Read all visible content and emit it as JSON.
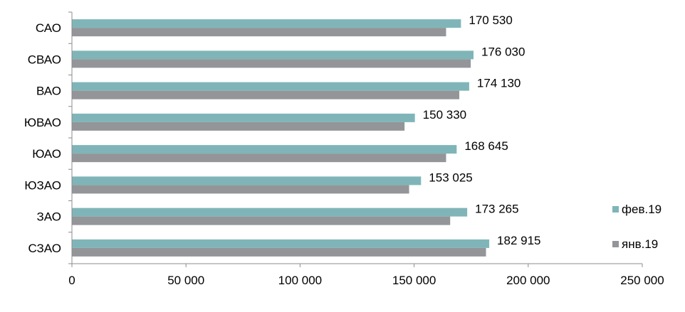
{
  "chart_data": {
    "type": "bar",
    "orientation": "horizontal",
    "categories": [
      "САО",
      "СВАО",
      "ВАО",
      "ЮВАО",
      "ЮАО",
      "ЮЗАО",
      "ЗАО",
      "СЗАО"
    ],
    "series": [
      {
        "name": "фев.19",
        "color": "#7fb5b8",
        "values": [
          170530,
          176030,
          174130,
          150330,
          168645,
          153025,
          173265,
          182915
        ],
        "labels": [
          "170 530",
          "176 030",
          "174 130",
          "150 330",
          "168 645",
          "153 025",
          "173 265",
          "182 915"
        ]
      },
      {
        "name": "янв.19",
        "color": "#939598",
        "values": [
          164000,
          174800,
          169800,
          145800,
          164000,
          147800,
          165800,
          181500
        ]
      }
    ],
    "xlim": [
      0,
      250000
    ],
    "xticks": [
      0,
      50000,
      100000,
      150000,
      200000,
      250000
    ],
    "xtick_labels": [
      "0",
      "50 000",
      "100 000",
      "150 000",
      "200 000",
      "250 000"
    ],
    "xlabel": "",
    "ylabel": "",
    "title": "",
    "grid": false,
    "legend_position": "right"
  }
}
